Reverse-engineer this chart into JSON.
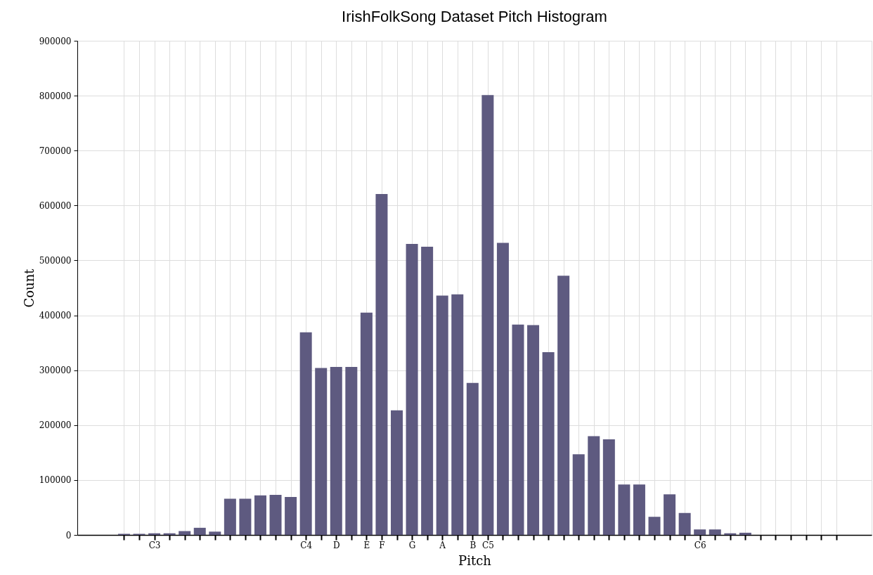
{
  "chart_data": {
    "type": "bar",
    "title": "IrishFolkSong Dataset Pitch Histogram",
    "xlabel": "Pitch",
    "ylabel": "Count",
    "categories": [
      null,
      null,
      "C3",
      null,
      null,
      null,
      null,
      null,
      null,
      null,
      null,
      null,
      "C4",
      null,
      "D",
      null,
      "E",
      "F",
      null,
      "G",
      null,
      "A",
      null,
      "B",
      "C5",
      null,
      null,
      null,
      null,
      null,
      null,
      null,
      null,
      null,
      null,
      null,
      null,
      null,
      "C6",
      null,
      null,
      null,
      null,
      null,
      null,
      null,
      null,
      null
    ],
    "values": [
      2000,
      2000,
      3000,
      3000,
      7000,
      13000,
      6000,
      66000,
      66000,
      72000,
      73000,
      69000,
      369000,
      304000,
      306000,
      306000,
      405000,
      621000,
      227000,
      530000,
      525000,
      436000,
      438000,
      277000,
      801000,
      532000,
      383000,
      382000,
      333000,
      472000,
      147000,
      180000,
      174000,
      92000,
      92000,
      33000,
      74000,
      40000,
      10000,
      10000,
      3000,
      4000,
      0,
      0,
      0,
      0,
      0,
      0
    ],
    "color": "#5e5a80",
    "ylim": [
      0,
      900000
    ],
    "yticks": [
      0,
      100000,
      200000,
      300000,
      400000,
      500000,
      600000,
      700000,
      800000,
      900000
    ],
    "grid": true
  }
}
